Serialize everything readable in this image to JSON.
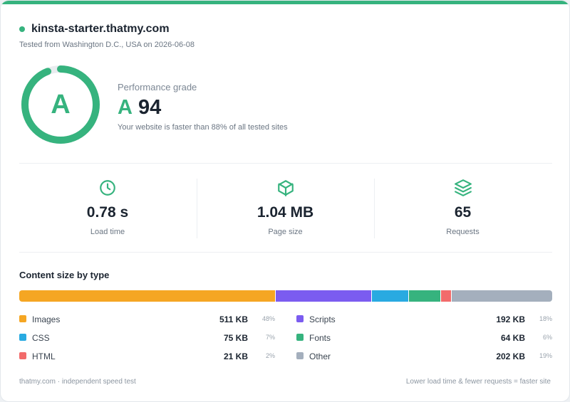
{
  "header": {
    "site": "kinsta-starter.thatmy.com",
    "tested_from": "Tested from Washington D.C., USA on 2026-06-08"
  },
  "performance": {
    "label": "Performance grade",
    "grade": "A",
    "score": "94",
    "score_fraction": 0.94,
    "faster_text": "Your website is faster than 88% of all tested sites"
  },
  "stats": [
    {
      "icon": "clock-icon",
      "value": "0.78 s",
      "label": "Load time"
    },
    {
      "icon": "box-icon",
      "value": "1.04 MB",
      "label": "Page size"
    },
    {
      "icon": "layers-icon",
      "value": "65",
      "label": "Requests"
    }
  ],
  "content": {
    "title": "Content size by type",
    "types": [
      {
        "name": "Images",
        "size": "511  KB",
        "pct": "48%",
        "share": 48,
        "color": "#f5a623"
      },
      {
        "name": "Scripts",
        "size": "192  KB",
        "pct": "18%",
        "share": 18,
        "color": "#7b5cf0"
      },
      {
        "name": "CSS",
        "size": "75  KB",
        "pct": "7%",
        "share": 7,
        "color": "#29aae1"
      },
      {
        "name": "Fonts",
        "size": "64  KB",
        "pct": "6%",
        "share": 6,
        "color": "#36b37e"
      },
      {
        "name": "HTML",
        "size": "21  KB",
        "pct": "2%",
        "share": 2,
        "color": "#f26b6b"
      },
      {
        "name": "Other",
        "size": "202  KB",
        "pct": "19%",
        "share": 19,
        "color": "#a4afbd"
      }
    ]
  },
  "colors": {
    "accent": "#36b37e",
    "track": "#e8ecef"
  },
  "footer": {
    "left": "thatmy.com · independent speed test",
    "right": "Lower load time & fewer requests = faster site"
  }
}
